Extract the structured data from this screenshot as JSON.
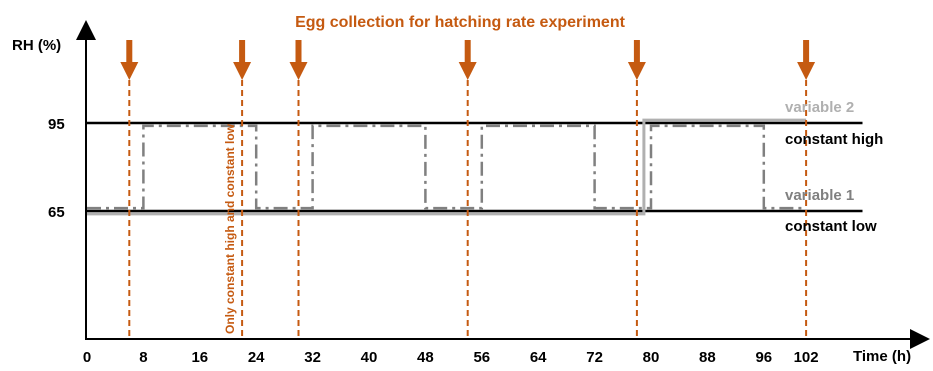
{
  "colors": {
    "accent": "#c55a11",
    "axis": "#000000",
    "constant_line": "#000000",
    "variable1_line": "#808080",
    "variable2_line": "#b0b0b0",
    "variable2_label": "#b0b0b0",
    "variable1_label": "#808080"
  },
  "chart_data": {
    "type": "line",
    "title": "Egg collection for hatching rate experiment",
    "xlabel": "Time (h)",
    "ylabel": "RH (%)",
    "xlim": [
      0,
      110
    ],
    "ylim": [
      0,
      127
    ],
    "x_ticks": [
      0,
      8,
      16,
      24,
      32,
      40,
      48,
      56,
      64,
      72,
      80,
      88,
      96,
      102
    ],
    "y_ticks": [
      65,
      95
    ],
    "series": [
      {
        "name": "constant high",
        "style": "solid",
        "points": [
          [
            0,
            95
          ],
          [
            110,
            95
          ]
        ]
      },
      {
        "name": "constant low",
        "style": "solid",
        "points": [
          [
            0,
            65
          ],
          [
            110,
            65
          ]
        ]
      },
      {
        "name": "variable 1",
        "style": "dash-dot",
        "points": [
          [
            0,
            66
          ],
          [
            8,
            66
          ],
          [
            8,
            94
          ],
          [
            24,
            94
          ],
          [
            24,
            66
          ],
          [
            32,
            66
          ],
          [
            32,
            94
          ],
          [
            48,
            94
          ],
          [
            48,
            66
          ],
          [
            56,
            66
          ],
          [
            56,
            94
          ],
          [
            72,
            94
          ],
          [
            72,
            66
          ],
          [
            80,
            66
          ],
          [
            80,
            94
          ],
          [
            96,
            94
          ],
          [
            96,
            66
          ],
          [
            102,
            66
          ]
        ]
      },
      {
        "name": "variable 2",
        "style": "solid",
        "points": [
          [
            0,
            64
          ],
          [
            79,
            64
          ],
          [
            79,
            96
          ],
          [
            102,
            96
          ]
        ]
      }
    ],
    "egg_collections_h": [
      6,
      22,
      30,
      54,
      78,
      102
    ],
    "annotations": [
      {
        "text": "Only constant high and constant low",
        "at_h": 22
      }
    ]
  },
  "labels": {
    "variable2": "variable 2",
    "constant_high": "constant high",
    "variable1": "variable 1",
    "constant_low": "constant low"
  }
}
